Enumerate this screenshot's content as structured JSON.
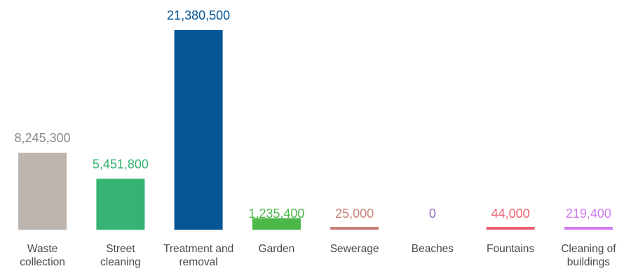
{
  "chart_data": {
    "type": "bar",
    "categories": [
      [
        "Waste",
        "collection"
      ],
      [
        "Street",
        "cleaning"
      ],
      [
        "Treatment and",
        "removal"
      ],
      [
        "Garden"
      ],
      [
        "Sewerage"
      ],
      [
        "Beaches"
      ],
      [
        "Fountains"
      ],
      [
        "Cleaning of",
        "buildings"
      ]
    ],
    "values": [
      8245300,
      5451800,
      21380500,
      1235400,
      25000,
      0,
      44000,
      219400
    ],
    "value_labels": [
      "8,245,300",
      "5,451,800",
      "21,380,500",
      "1,235,400",
      "25,000",
      "0",
      "44,000",
      "219,400"
    ],
    "colors": [
      "#bdb5ae",
      "#35b373",
      "#035596",
      "#4db84a",
      "#c98078",
      "#8b6bb3",
      "#ec6372",
      "#d27cef"
    ],
    "title": "",
    "xlabel": "",
    "ylabel": "",
    "ylim": [
      0,
      21380500
    ],
    "grid": false,
    "legend": "none"
  }
}
